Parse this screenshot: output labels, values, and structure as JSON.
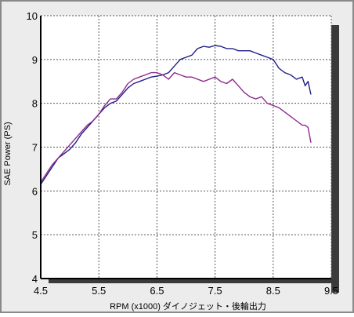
{
  "chart_data": {
    "type": "line",
    "title": "",
    "xlabel": "RPM (x1000) ダイノジェット・後輪出力",
    "ylabel": "SAE Power (PS)",
    "xlim": [
      4.5,
      9.5
    ],
    "ylim": [
      4,
      10
    ],
    "x_ticks": [
      4.5,
      5.5,
      6.5,
      7.5,
      8.5,
      9.5
    ],
    "x_tick_labels": [
      "4.5",
      "5.5",
      "6.5",
      "7.5",
      "8.5",
      "9.5"
    ],
    "y_ticks": [
      4,
      5,
      6,
      7,
      8,
      9,
      10
    ],
    "y_tick_labels": [
      "4",
      "5",
      "6",
      "7",
      "8",
      "9",
      "10"
    ],
    "grid": true,
    "legend": "none",
    "series": [
      {
        "color": "#1f1f8a",
        "x": [
          4.5,
          4.6,
          4.7,
          4.8,
          4.9,
          5.0,
          5.1,
          5.2,
          5.3,
          5.4,
          5.5,
          5.6,
          5.7,
          5.8,
          5.9,
          6.0,
          6.1,
          6.2,
          6.3,
          6.4,
          6.5,
          6.6,
          6.7,
          6.8,
          6.9,
          7.0,
          7.1,
          7.2,
          7.3,
          7.4,
          7.5,
          7.6,
          7.7,
          7.8,
          7.9,
          8.0,
          8.1,
          8.2,
          8.3,
          8.4,
          8.5,
          8.6,
          8.7,
          8.8,
          8.9,
          9.0,
          9.05,
          9.1,
          9.15
        ],
        "y": [
          6.15,
          6.35,
          6.55,
          6.75,
          6.85,
          6.95,
          7.1,
          7.3,
          7.45,
          7.6,
          7.75,
          7.9,
          8.0,
          8.05,
          8.2,
          8.35,
          8.45,
          8.5,
          8.55,
          8.6,
          8.62,
          8.65,
          8.7,
          8.85,
          9.0,
          9.05,
          9.1,
          9.25,
          9.3,
          9.28,
          9.32,
          9.3,
          9.25,
          9.25,
          9.2,
          9.2,
          9.2,
          9.15,
          9.1,
          9.05,
          9.0,
          8.8,
          8.7,
          8.65,
          8.55,
          8.6,
          8.4,
          8.5,
          8.2
        ]
      },
      {
        "color": "#8e2a8c",
        "x": [
          4.5,
          4.6,
          4.7,
          4.8,
          4.9,
          5.0,
          5.1,
          5.2,
          5.3,
          5.4,
          5.5,
          5.6,
          5.7,
          5.8,
          5.9,
          6.0,
          6.1,
          6.2,
          6.3,
          6.4,
          6.5,
          6.6,
          6.7,
          6.8,
          6.9,
          7.0,
          7.1,
          7.2,
          7.3,
          7.4,
          7.5,
          7.6,
          7.7,
          7.8,
          7.9,
          8.0,
          8.1,
          8.2,
          8.3,
          8.4,
          8.5,
          8.6,
          8.7,
          8.8,
          8.9,
          9.0,
          9.05,
          9.1,
          9.15
        ],
        "y": [
          6.2,
          6.4,
          6.6,
          6.75,
          6.9,
          7.05,
          7.2,
          7.35,
          7.5,
          7.6,
          7.75,
          7.95,
          8.1,
          8.1,
          8.25,
          8.45,
          8.55,
          8.6,
          8.65,
          8.7,
          8.7,
          8.65,
          8.55,
          8.7,
          8.65,
          8.6,
          8.6,
          8.55,
          8.5,
          8.55,
          8.6,
          8.5,
          8.45,
          8.55,
          8.4,
          8.25,
          8.15,
          8.1,
          8.15,
          8.0,
          7.95,
          7.9,
          7.8,
          7.7,
          7.6,
          7.5,
          7.5,
          7.45,
          7.1
        ]
      }
    ]
  },
  "colors": {
    "frame_bg": "#ececec",
    "frame_border": "#8a8a8a",
    "plot_bg": "#ffffff",
    "axis": "#000000",
    "grid": "#555555",
    "shadow": "#3a3a3a"
  }
}
